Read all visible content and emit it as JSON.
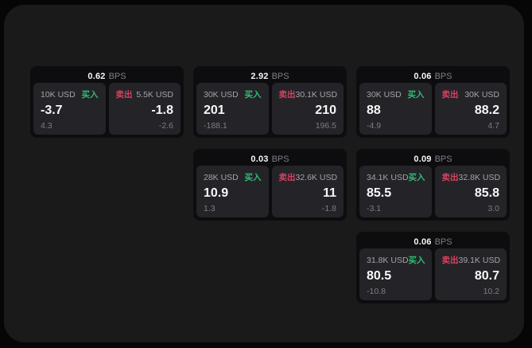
{
  "labels": {
    "bps_unit": "BPS",
    "buy": "买入",
    "sell": "卖出"
  },
  "colors": {
    "buy_green": "#2ebd73",
    "sell_red": "#d8415f",
    "page_background": "#060607",
    "surface_background": "#1a1a1b",
    "card_background": "#0d0d0f",
    "tile_background": "#242428"
  },
  "cards": [
    {
      "bps": "0.62",
      "buy": {
        "notional": "10K USD",
        "price": "-3.7",
        "secondary": "4.3"
      },
      "sell": {
        "notional": "5.5K USD",
        "price": "-1.8",
        "secondary": "-2.6"
      }
    },
    {
      "bps": "2.92",
      "buy": {
        "notional": "30K USD",
        "price": "201",
        "secondary": "-188.1"
      },
      "sell": {
        "notional": "30.1K USD",
        "price": "210",
        "secondary": "196.5"
      }
    },
    {
      "bps": "0.06",
      "buy": {
        "notional": "30K USD",
        "price": "88",
        "secondary": "-4.9"
      },
      "sell": {
        "notional": "30K USD",
        "price": "88.2",
        "secondary": "4.7"
      }
    },
    {
      "bps": "0.03",
      "buy": {
        "notional": "28K USD",
        "price": "10.9",
        "secondary": "1.3"
      },
      "sell": {
        "notional": "32.6K USD",
        "price": "11",
        "secondary": "-1.8"
      }
    },
    {
      "bps": "0.09",
      "buy": {
        "notional": "34.1K USD",
        "price": "85.5",
        "secondary": "-3.1"
      },
      "sell": {
        "notional": "32.8K USD",
        "price": "85.8",
        "secondary": "3.0"
      }
    },
    {
      "bps": "0.06",
      "buy": {
        "notional": "31.8K USD",
        "price": "80.5",
        "secondary": "-10.8"
      },
      "sell": {
        "notional": "39.1K USD",
        "price": "80.7",
        "secondary": "10.2"
      }
    }
  ]
}
